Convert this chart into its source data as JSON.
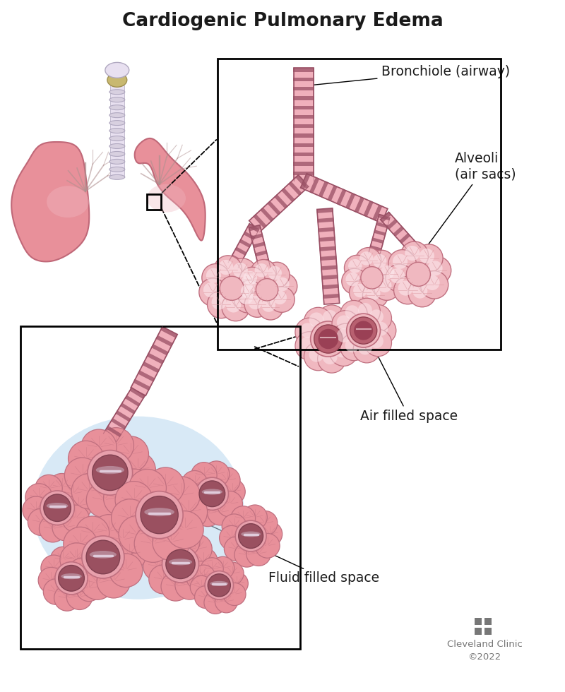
{
  "title": "Cardiogenic Pulmonary Edema",
  "title_fontsize": 19,
  "title_fontweight": "bold",
  "bg_color": "#ffffff",
  "lung_fill": "#e8909a",
  "lung_light": "#f0b8c0",
  "lung_dark": "#c8607a",
  "lung_edge": "#c06878",
  "trachea_fill": "#d8d0e0",
  "trachea_edge": "#b0a8c0",
  "trachea_ring": "#e8e0f0",
  "bronch_fill": "#f0b0bc",
  "bronch_stripe_dark": "#9a5065",
  "bronch_stripe_light": "#f0b0bc",
  "bronch_edge": "#c07080",
  "alv_fill": "#f0b8c0",
  "alv_light": "#fce8ec",
  "alv_edge": "#c07080",
  "alv_crack": "#d89098",
  "fluid_dark": "#a06070",
  "fluid_mid": "#c89098",
  "fluid_light": "#e8c8d0",
  "fluid_shine": "#e0d8e8",
  "air_center": "#f5e8ec",
  "blue_glow": "#b8d8f0",
  "box_color": "#1a1a1a",
  "label_color": "#1a1a1a",
  "label_fontsize": 13.5,
  "gray_color": "#777777",
  "copyright_text": "Cleveland Clinic\n©2022",
  "annotations": {
    "bronchiole": "Bronchiole (airway)",
    "alveoli": "Alveoli\n(air sacs)",
    "air_filled": "Air filled space",
    "fluid_filled": "Fluid filled space"
  }
}
